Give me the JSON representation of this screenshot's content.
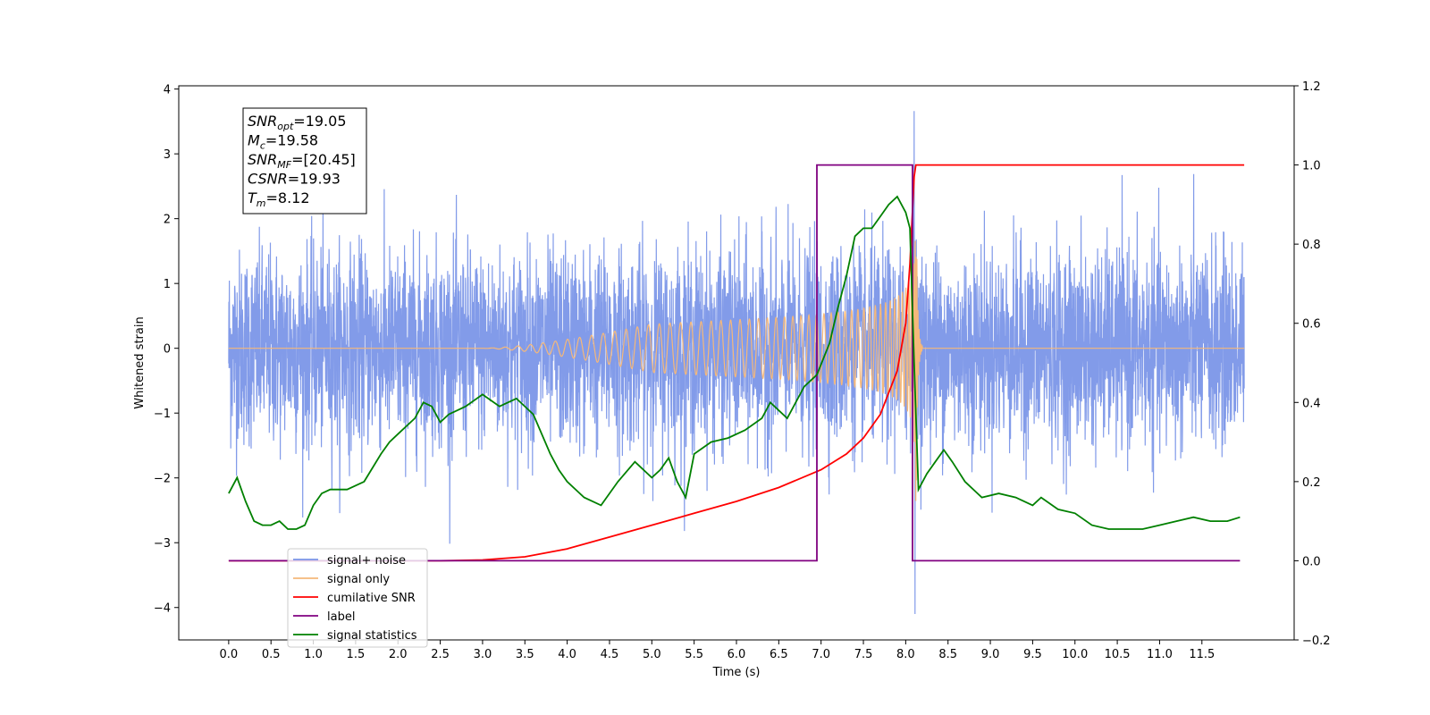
{
  "chart_data": {
    "type": "line",
    "xlabel": "Time (s)",
    "ylabel": "Whitened strain",
    "x_ticks": [
      0.0,
      0.5,
      1.0,
      1.5,
      2.0,
      2.5,
      3.0,
      3.5,
      4.0,
      4.5,
      5.0,
      5.5,
      6.0,
      6.5,
      7.0,
      7.5,
      8.0,
      8.5,
      9.0,
      9.5,
      10.0,
      10.5,
      11.0,
      11.5
    ],
    "x_tick_labels": [
      "0.0",
      "0.5",
      "1.0",
      "1.5",
      "2.0",
      "2.5",
      "3.0",
      "3.5",
      "4.0",
      "4.5",
      "5.0",
      "5.5",
      "6.0",
      "6.5",
      "7.0",
      "7.5",
      "8.0",
      "8.5",
      "9.0",
      "9.5",
      "10.0",
      "10.5",
      "11.0",
      "11.5"
    ],
    "xlim": [
      -0.59,
      12.59
    ],
    "ylim_left": [
      -4.5,
      4.05
    ],
    "y_ticks_left": [
      -4,
      -3,
      -2,
      -1,
      0,
      1,
      2,
      3,
      4
    ],
    "y_tick_labels_left": [
      "−4",
      "−3",
      "−2",
      "−1",
      "0",
      "1",
      "2",
      "3",
      "4"
    ],
    "ylim_right": [
      -0.2,
      1.2
    ],
    "y_ticks_right": [
      -0.2,
      0.0,
      0.2,
      0.4,
      0.6,
      0.8,
      1.0,
      1.2
    ],
    "y_tick_labels_right": [
      "−0.2",
      "0.0",
      "0.2",
      "0.4",
      "0.6",
      "0.8",
      "1.0",
      "1.2"
    ],
    "grid": false,
    "legend_position": "lower-left",
    "annotation": {
      "lines": [
        {
          "main": "SNR",
          "sub": "opt",
          "rest": "=19.05"
        },
        {
          "main": "M",
          "sub": "c",
          "rest": "=19.58"
        },
        {
          "main": "SNR",
          "sub": "MF",
          "rest": "=[20.45]"
        },
        {
          "main": "CSNR",
          "sub": "",
          "rest": "=19.93"
        },
        {
          "main": "T",
          "sub": "m",
          "rest": "=8.12"
        }
      ]
    },
    "series": [
      {
        "name": "signal+ noise",
        "axis": "left",
        "color": "#7b96e8",
        "style": "noise",
        "noise_envelope": {
          "sigma": 0.75,
          "max_abs": 3.16
        },
        "extremes": {
          "t": 8.1,
          "max": 3.66,
          "min": -4.1
        }
      },
      {
        "name": "signal only",
        "axis": "left",
        "color": "#f5b87a",
        "style": "chirp",
        "chirp": {
          "t_start": 3.0,
          "t_merge": 8.12,
          "peak": 2.95,
          "t_end": 12.0
        }
      },
      {
        "name": "cumilative SNR",
        "axis": "right",
        "color": "#ff0000",
        "x": [
          0.0,
          2.5,
          3.0,
          3.5,
          4.0,
          4.5,
          5.0,
          5.5,
          6.0,
          6.5,
          7.0,
          7.3,
          7.5,
          7.7,
          7.9,
          8.0,
          8.05,
          8.1,
          8.12,
          12.0
        ],
        "y": [
          0.0,
          0.0,
          0.002,
          0.01,
          0.03,
          0.06,
          0.09,
          0.12,
          0.15,
          0.185,
          0.23,
          0.27,
          0.31,
          0.37,
          0.48,
          0.6,
          0.75,
          0.97,
          1.0,
          1.0
        ]
      },
      {
        "name": "label",
        "axis": "right",
        "color": "#800080",
        "x": [
          0.0,
          6.95,
          6.95,
          8.08,
          8.08,
          11.95
        ],
        "y": [
          0.0,
          0.0,
          1.0,
          1.0,
          0.0,
          0.0
        ]
      },
      {
        "name": "signal statistics",
        "axis": "right",
        "color": "#008000",
        "x": [
          0.0,
          0.1,
          0.2,
          0.3,
          0.4,
          0.5,
          0.6,
          0.7,
          0.8,
          0.9,
          1.0,
          1.1,
          1.2,
          1.4,
          1.6,
          1.8,
          1.9,
          2.0,
          2.2,
          2.3,
          2.4,
          2.5,
          2.6,
          2.8,
          3.0,
          3.2,
          3.3,
          3.4,
          3.6,
          3.8,
          3.9,
          4.0,
          4.2,
          4.4,
          4.6,
          4.8,
          5.0,
          5.1,
          5.2,
          5.3,
          5.4,
          5.5,
          5.7,
          5.9,
          6.1,
          6.3,
          6.4,
          6.6,
          6.8,
          6.95,
          7.1,
          7.2,
          7.3,
          7.4,
          7.5,
          7.6,
          7.7,
          7.8,
          7.9,
          8.0,
          8.05,
          8.1,
          8.15,
          8.25,
          8.35,
          8.45,
          8.55,
          8.7,
          8.9,
          9.1,
          9.3,
          9.5,
          9.6,
          9.8,
          10.0,
          10.2,
          10.4,
          10.6,
          10.8,
          11.0,
          11.2,
          11.4,
          11.6,
          11.8,
          11.95
        ],
        "y": [
          0.17,
          0.21,
          0.15,
          0.1,
          0.09,
          0.09,
          0.1,
          0.08,
          0.08,
          0.09,
          0.14,
          0.17,
          0.18,
          0.18,
          0.2,
          0.27,
          0.3,
          0.32,
          0.36,
          0.4,
          0.39,
          0.35,
          0.37,
          0.39,
          0.42,
          0.39,
          0.4,
          0.41,
          0.37,
          0.27,
          0.23,
          0.2,
          0.16,
          0.14,
          0.2,
          0.25,
          0.21,
          0.23,
          0.26,
          0.2,
          0.16,
          0.27,
          0.3,
          0.31,
          0.33,
          0.36,
          0.4,
          0.36,
          0.44,
          0.47,
          0.55,
          0.64,
          0.72,
          0.82,
          0.84,
          0.84,
          0.87,
          0.9,
          0.92,
          0.88,
          0.84,
          0.5,
          0.18,
          0.22,
          0.25,
          0.28,
          0.25,
          0.2,
          0.16,
          0.17,
          0.16,
          0.14,
          0.16,
          0.13,
          0.12,
          0.09,
          0.08,
          0.08,
          0.08,
          0.09,
          0.1,
          0.11,
          0.1,
          0.1,
          0.11
        ]
      }
    ]
  }
}
